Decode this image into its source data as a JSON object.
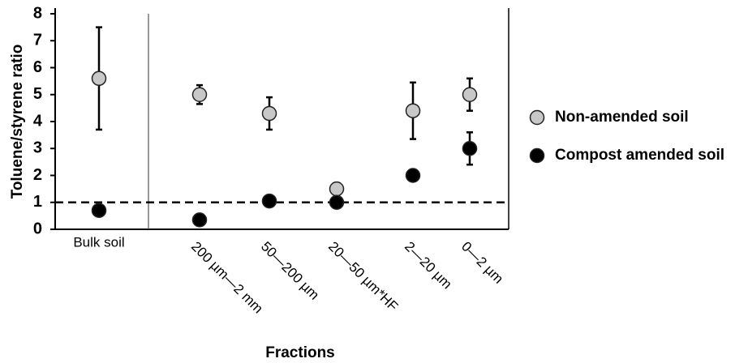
{
  "chart_data": {
    "type": "scatter",
    "y_label": "Toluene/styrene ratio",
    "x_label": "Fractions",
    "categories": [
      "Bulk soil",
      "200 µm—2 mm",
      "50—200 µm",
      "20—50 µm*HF",
      "2—20 µm",
      "0—2 µm"
    ],
    "series": [
      {
        "name": "Non-amended soil",
        "color": "#c8c8c8",
        "values": [
          5.6,
          5.0,
          4.3,
          1.5,
          4.4,
          5.0
        ],
        "errors": [
          1.9,
          0.35,
          0.6,
          null,
          1.05,
          0.6
        ]
      },
      {
        "name": "Compost amended soil",
        "color": "#000000",
        "values": [
          0.7,
          0.35,
          1.05,
          1.0,
          2.0,
          3.0
        ],
        "errors": [
          null,
          null,
          null,
          null,
          null,
          0.6
        ]
      }
    ],
    "reference_line": 1,
    "ylim": [
      0,
      8
    ],
    "yticks": [
      0,
      1,
      2,
      3,
      4,
      5,
      6,
      7,
      8
    ]
  }
}
